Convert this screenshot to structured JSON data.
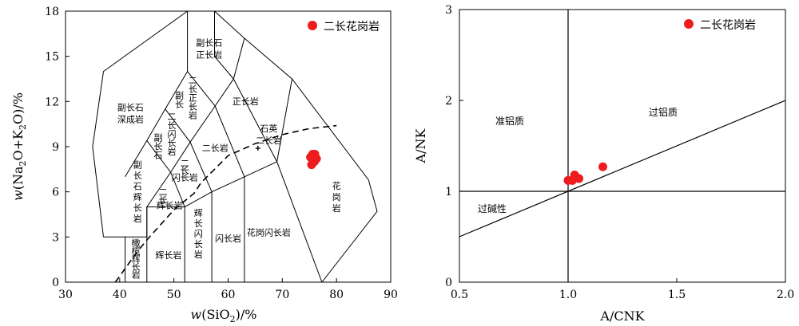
{
  "chart_data": [
    {
      "type": "scatter",
      "title": "",
      "xlabel": "w(SiO2)/%",
      "ylabel": "w(Na2O+K2O)/%",
      "xlim": [
        30,
        90
      ],
      "ylim": [
        0,
        18
      ],
      "x_ticks": [
        "30",
        "40",
        "50",
        "60",
        "70",
        "80",
        "90"
      ],
      "y_ticks": [
        "0",
        "3",
        "6",
        "9",
        "12",
        "15",
        "18"
      ],
      "legend": "二长花岗岩",
      "legend_position": "top-right",
      "point_color": "#ee1c1c",
      "series": [
        {
          "name": "二长花岗岩",
          "points": [
            [
              75.2,
              8.3
            ],
            [
              75.6,
              8.5
            ],
            [
              76.0,
              8.5
            ],
            [
              76.3,
              8.2
            ],
            [
              75.9,
              8.0
            ],
            [
              75.4,
              7.8
            ]
          ]
        }
      ],
      "field_labels": {
        "syenite": [
          "副长石",
          "正长岩"
        ],
        "foid_syenite": [
          "副长石",
          "深成岩"
        ],
        "foid_monzosyenite": [
          "副",
          "长",
          "二",
          "长",
          "正",
          "长",
          "岩"
        ],
        "foid_monzodiorite": [
          "副",
          "长",
          "石",
          "二",
          "长",
          "闪",
          "长",
          "岩"
        ],
        "foid_gabbro": [
          "副",
          "长",
          "石",
          "辉",
          "长",
          "岩"
        ],
        "monzogabbro": [
          "二",
          "长",
          "辉",
          "长",
          "岩"
        ],
        "monzodiorite": [
          "二",
          "长",
          "闪",
          "长",
          "岩"
        ],
        "monzonite": "二长岩",
        "quartz_monzonite": [
          "石英",
          "二长岩"
        ],
        "alkali_syenite": "正长岩",
        "granite": [
          "花",
          "岗",
          "岩"
        ],
        "granodiorite": "花岗闪长岩",
        "diorite": "闪长岩",
        "gabbroic_diorite": [
          "辉",
          "长",
          "闪",
          "长",
          "岩"
        ],
        "gabbro": "辉长岩",
        "peridot_gabbro": [
          "橄",
          "榄",
          "辉",
          "长",
          "岩"
        ]
      }
    },
    {
      "type": "scatter",
      "title": "",
      "xlabel": "A/CNK",
      "ylabel": "A/NK",
      "xlim": [
        0.5,
        2.0
      ],
      "ylim": [
        0,
        3
      ],
      "x_ticks": [
        "0.5",
        "1.0",
        "1.5",
        "2.0"
      ],
      "y_ticks": [
        "0",
        "1",
        "2",
        "3"
      ],
      "legend": "二长花岗岩",
      "legend_position": "top-right",
      "point_color": "#ee1c1c",
      "series": [
        {
          "name": "二长花岗岩",
          "points": [
            [
              1.0,
              1.12
            ],
            [
              1.02,
              1.12
            ],
            [
              1.03,
              1.15
            ],
            [
              1.05,
              1.14
            ],
            [
              1.03,
              1.18
            ],
            [
              1.16,
              1.27
            ]
          ]
        }
      ],
      "field_labels": {
        "metaluminous": "准铝质",
        "peraluminous": "过铝质",
        "peralkaline": "过碱性"
      }
    }
  ]
}
